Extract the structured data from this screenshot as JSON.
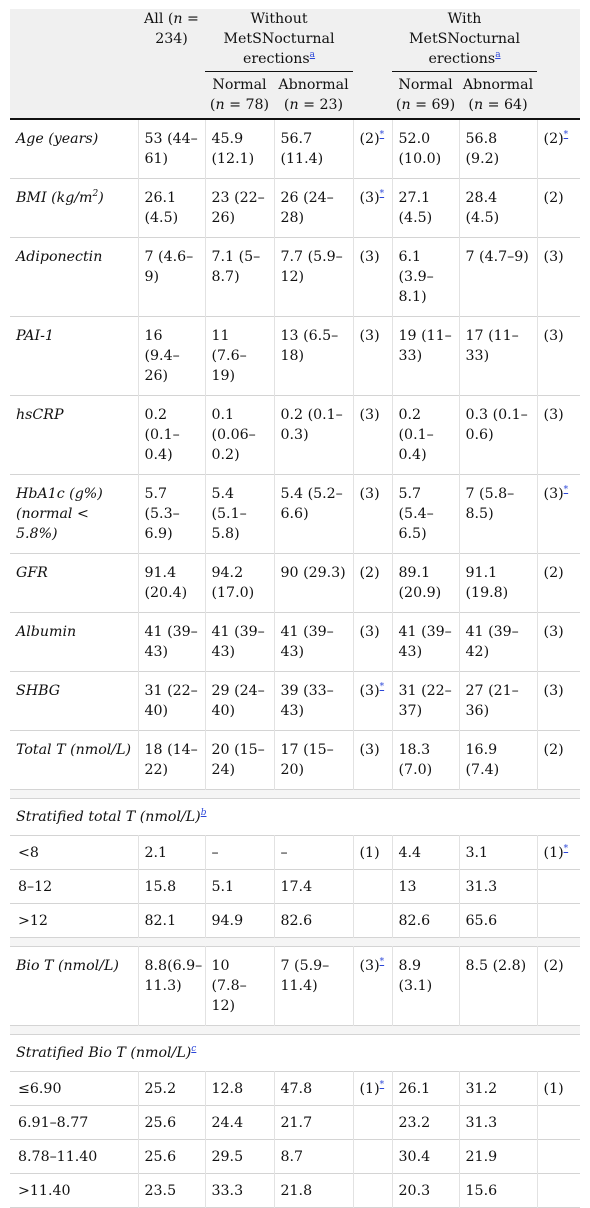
{
  "header": {
    "all_pre": "All (",
    "all_n": "n",
    "all_post": " = 234)",
    "without_group": "Without MetSNocturnal erections",
    "with_group": "With MetSNocturnal erections",
    "group_note": "a",
    "normal_a_pre": "Normal (",
    "normal_a_n": "n",
    "normal_a_post": " = 78)",
    "abn_a_pre": "Abnormal (",
    "abn_a_n": "n",
    "abn_a_post": " = 23)",
    "normal_b_pre": "Normal (",
    "normal_b_n": "n",
    "normal_b_post": " = 69)",
    "abn_b_pre": "Abnormal (",
    "abn_b_n": "n",
    "abn_b_post": " = 64)"
  },
  "rows": {
    "age": {
      "label": "Age (years)",
      "all": "53 (44–61)",
      "wn": "45.9 (12.1)",
      "wa": "56.7 (11.4)",
      "t1": "(2)",
      "s1": "*",
      "mn": "52.0 (10.0)",
      "ma": "56.8 (9.2)",
      "t2": "(2)",
      "s2": "*"
    },
    "bmi": {
      "label": "BMI (kg/m",
      "label_sup": "2",
      "label_end": ")",
      "all": "26.1 (4.5)",
      "wn": "23 (22–26)",
      "wa": "26 (24–28)",
      "t1": "(3)",
      "s1": "*",
      "mn": "27.1 (4.5)",
      "ma": "28.4 (4.5)",
      "t2": "(2)"
    },
    "adiponectin": {
      "label": "Adiponectin",
      "all": "7 (4.6–9)",
      "wn": "7.1 (5–8.7)",
      "wa": "7.7 (5.9–12)",
      "t1": "(3)",
      "mn": "6.1 (3.9–8.1)",
      "ma": "7 (4.7–9)",
      "t2": "(3)"
    },
    "pai1": {
      "label": "PAI-1",
      "all": "16 (9.4–26)",
      "wn": "11 (7.6–19)",
      "wa": "13 (6.5–18)",
      "t1": "(3)",
      "mn": "19 (11–33)",
      "ma": "17 (11–33)",
      "t2": "(3)"
    },
    "hscrp": {
      "label": "hsCRP",
      "all": "0.2 (0.1–0.4)",
      "wn": "0.1 (0.06–0.2)",
      "wa": "0.2 (0.1–0.3)",
      "t1": "(3)",
      "mn": "0.2 (0.1–0.4)",
      "ma": "0.3 (0.1–0.6)",
      "t2": "(3)"
    },
    "hba1c": {
      "label": "HbA1c (g%) (normal < 5.8%)",
      "all": "5.7 (5.3–6.9)",
      "wn": "5.4 (5.1–5.8)",
      "wa": "5.4 (5.2–6.6)",
      "t1": "(3)",
      "mn": "5.7 (5.4–6.5)",
      "ma": "7 (5.8–8.5)",
      "t2": "(3)",
      "s2": "*"
    },
    "gfr": {
      "label": "GFR",
      "all": "91.4 (20.4)",
      "wn": "94.2 (17.0)",
      "wa": "90 (29.3)",
      "t1": "(2)",
      "mn": "89.1 (20.9)",
      "ma": "91.1 (19.8)",
      "t2": "(2)"
    },
    "albumin": {
      "label": "Albumin",
      "all": "41 (39–43)",
      "wn": "41 (39–43)",
      "wa": "41 (39–43)",
      "t1": "(3)",
      "mn": "41 (39–43)",
      "ma": "41 (39–42)",
      "t2": "(3)"
    },
    "shbg": {
      "label": "SHBG",
      "all": "31 (22–40)",
      "wn": "29 (24–40)",
      "wa": "39 (33–43)",
      "t1": "(3)",
      "s1": "*",
      "mn": "31 (22–37)",
      "ma": "27 (21–36)",
      "t2": "(3)"
    },
    "totalt": {
      "label": "Total T (nmol/L)",
      "all": "18 (14–22)",
      "wn": "20 (15–24)",
      "wa": "17 (15–20)",
      "t1": "(3)",
      "mn": "18.3 (7.0)",
      "ma": "16.9 (7.4)",
      "t2": "(2)"
    },
    "strat_total": {
      "label": "Stratified total T (nmol/L)",
      "note": "b"
    },
    "st_lt8": {
      "label": "<8",
      "all": "2.1",
      "wn": "–",
      "wa": "–",
      "t1": "(1)",
      "mn": "4.4",
      "ma": "3.1",
      "t2": "(1)",
      "s2": "*"
    },
    "st_8_12": {
      "label": "8–12",
      "all": "15.8",
      "wn": "5.1",
      "wa": "17.4",
      "mn": "13",
      "ma": "31.3"
    },
    "st_gt12": {
      "label": ">12",
      "all": "82.1",
      "wn": "94.9",
      "wa": "82.6",
      "mn": "82.6",
      "ma": "65.6"
    },
    "biot": {
      "label": "Bio T (nmol/L)",
      "all": "8.8(6.9–11.3)",
      "wn": "10 (7.8–12)",
      "wa": "7 (5.9–11.4)",
      "t1": "(3)",
      "s1": "*",
      "mn": "8.9 (3.1)",
      "ma": "8.5 (2.8)",
      "t2": "(2)"
    },
    "strat_bio": {
      "label": "Stratified Bio T (nmol/L)",
      "note": "c"
    },
    "sb_1": {
      "label": "≤6.90",
      "all": "25.2",
      "wn": "12.8",
      "wa": "47.8",
      "t1": "(1)",
      "s1": "*",
      "mn": "26.1",
      "ma": "31.2",
      "t2": "(1)"
    },
    "sb_2": {
      "label": "6.91–8.77",
      "all": "25.6",
      "wn": "24.4",
      "wa": "21.7",
      "mn": "23.2",
      "ma": "31.3"
    },
    "sb_3": {
      "label": "8.78–11.40",
      "all": "25.6",
      "wn": "29.5",
      "wa": "8.7",
      "mn": "30.4",
      "ma": "21.9"
    },
    "sb_4": {
      "label": ">11.40",
      "all": "23.5",
      "wn": "33.3",
      "wa": "21.8",
      "mn": "20.3",
      "ma": "15.6"
    }
  }
}
